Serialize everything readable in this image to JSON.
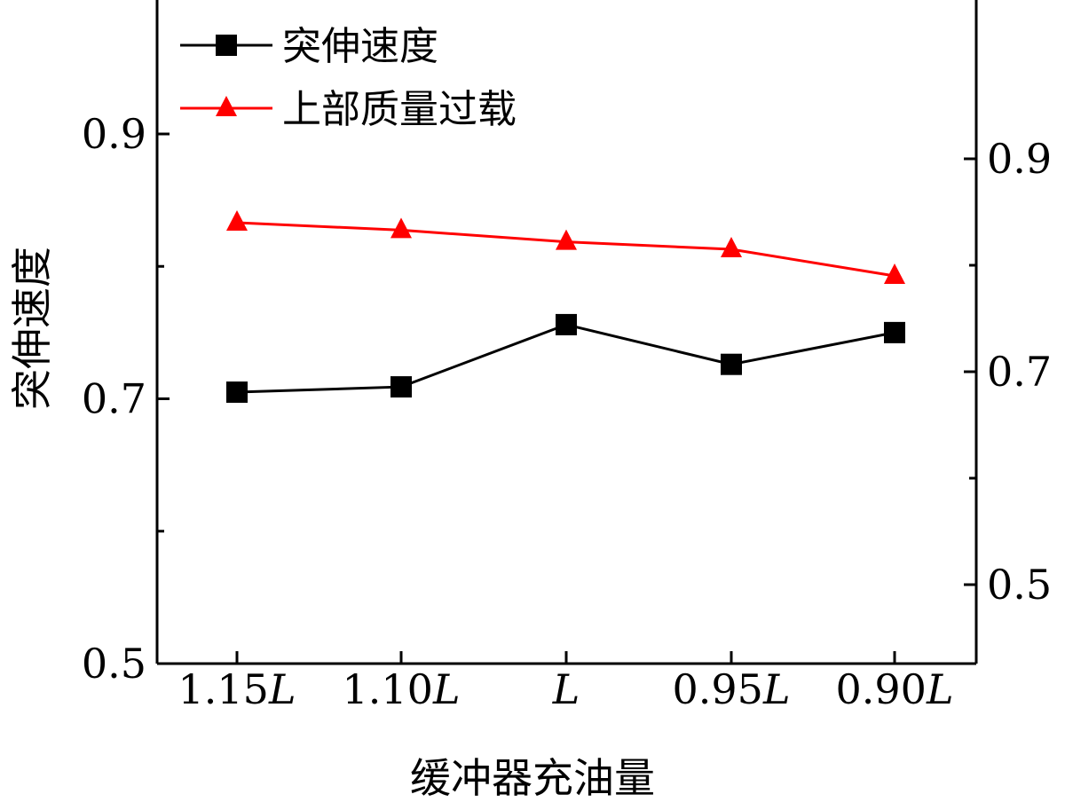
{
  "chart_data": {
    "type": "line",
    "categories": [
      "1.15L",
      "1.10L",
      "L",
      "0.95L",
      "0.90L"
    ],
    "category_labels": [
      {
        "num": "1.15",
        "var": "L"
      },
      {
        "num": "1.10",
        "var": "L"
      },
      {
        "num": "",
        "var": "L"
      },
      {
        "num": "0.95",
        "var": "L"
      },
      {
        "num": "0.90",
        "var": "L"
      }
    ],
    "xlabel": "缓冲器充油量",
    "ylabel": "突伸速度",
    "ylim": [
      0.5,
      0.9
    ],
    "yticks": [
      "0.5",
      "0.7",
      "0.9"
    ],
    "y2lim": [
      0.5,
      0.9
    ],
    "y2ticks": [
      "0.5",
      "0.7",
      "0.9"
    ],
    "legend_position": "top-left",
    "grid": false,
    "series": [
      {
        "name": "突伸速度",
        "axis": "left",
        "color": "#000000",
        "marker": "square",
        "values": [
          0.705,
          0.709,
          0.756,
          0.726,
          0.75
        ]
      },
      {
        "name": "上部质量过载",
        "axis": "right",
        "color": "#ff0000",
        "marker": "triangle",
        "values": [
          0.84,
          0.833,
          0.822,
          0.815,
          0.79
        ]
      }
    ]
  }
}
